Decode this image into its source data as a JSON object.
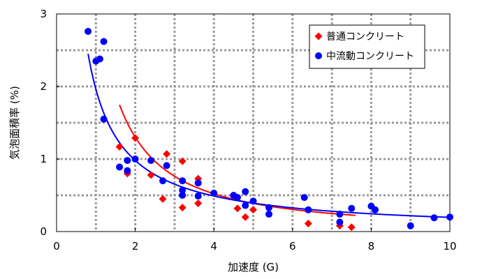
{
  "chart_data": {
    "type": "scatter",
    "xlabel": "加速度 (G)",
    "ylabel": "気泡面積率 (%)",
    "xlim": [
      0,
      10
    ],
    "ylim": [
      0,
      3
    ],
    "xticks": [
      "0",
      "2",
      "4",
      "6",
      "8",
      "10"
    ],
    "yticks": [
      "0",
      "1",
      "2",
      "3"
    ],
    "grid": true,
    "legend_position": "top-right",
    "series": [
      {
        "name": "普通コンクリート",
        "marker": "diamond",
        "color": "#ff0000",
        "points": [
          [
            1.6,
            1.17
          ],
          [
            1.8,
            0.8
          ],
          [
            2.0,
            1.29
          ],
          [
            2.4,
            0.78
          ],
          [
            2.7,
            0.45
          ],
          [
            2.8,
            1.07
          ],
          [
            3.2,
            0.97
          ],
          [
            3.2,
            0.33
          ],
          [
            3.6,
            0.73
          ],
          [
            3.6,
            0.39
          ],
          [
            4.6,
            0.32
          ],
          [
            4.8,
            0.2
          ],
          [
            5.0,
            0.3
          ],
          [
            6.4,
            0.11
          ],
          [
            7.2,
            0.08
          ],
          [
            7.5,
            0.06
          ]
        ],
        "fit": {
          "form": "power",
          "x_from": 1.6,
          "x_to": 7.6,
          "a": 3.25,
          "b": -1.32
        }
      },
      {
        "name": "中流動コンクリート",
        "marker": "circle",
        "color": "#0000ff",
        "points": [
          [
            0.8,
            2.76
          ],
          [
            1.0,
            2.35
          ],
          [
            1.1,
            2.38
          ],
          [
            1.2,
            2.62
          ],
          [
            1.2,
            1.55
          ],
          [
            1.6,
            0.89
          ],
          [
            1.8,
            0.84
          ],
          [
            1.8,
            0.98
          ],
          [
            2.0,
            1.0
          ],
          [
            2.4,
            0.98
          ],
          [
            2.7,
            0.7
          ],
          [
            2.8,
            0.91
          ],
          [
            3.2,
            0.7
          ],
          [
            3.2,
            0.57
          ],
          [
            3.2,
            0.5
          ],
          [
            3.6,
            0.67
          ],
          [
            3.6,
            0.49
          ],
          [
            4.0,
            0.53
          ],
          [
            4.5,
            0.5
          ],
          [
            4.6,
            0.47
          ],
          [
            4.8,
            0.55
          ],
          [
            4.8,
            0.36
          ],
          [
            5.0,
            0.42
          ],
          [
            5.4,
            0.33
          ],
          [
            5.4,
            0.24
          ],
          [
            6.3,
            0.47
          ],
          [
            6.4,
            0.3
          ],
          [
            7.2,
            0.24
          ],
          [
            7.2,
            0.13
          ],
          [
            7.5,
            0.32
          ],
          [
            8.0,
            0.35
          ],
          [
            8.1,
            0.3
          ],
          [
            9.0,
            0.08
          ],
          [
            9.6,
            0.19
          ],
          [
            10.0,
            0.2
          ]
        ],
        "fit": {
          "form": "power",
          "x_from": 0.8,
          "x_to": 10.0,
          "a": 1.96,
          "b": -1.0
        }
      }
    ]
  }
}
